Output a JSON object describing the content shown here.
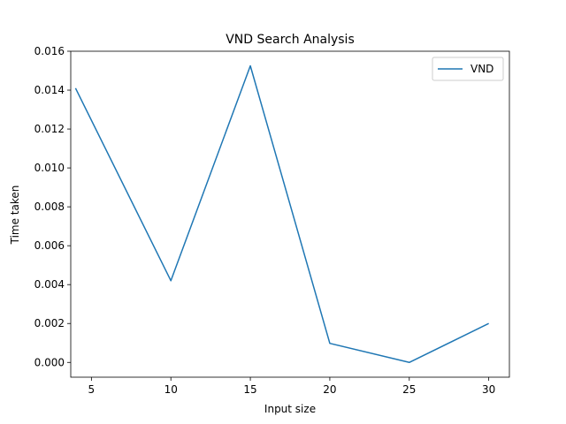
{
  "chart_data": {
    "type": "line",
    "title": "VND Search Analysis",
    "xlabel": "Input size",
    "ylabel": "Time taken",
    "xlim": [
      3.7,
      31.3
    ],
    "ylim": [
      -0.00076,
      0.016
    ],
    "xticks": [
      5,
      10,
      15,
      20,
      25,
      30
    ],
    "xtick_labels": [
      "5",
      "10",
      "15",
      "20",
      "25",
      "30"
    ],
    "yticks": [
      0.0,
      0.002,
      0.004,
      0.006,
      0.008,
      0.01,
      0.012,
      0.014,
      0.016
    ],
    "ytick_labels": [
      "0.000",
      "0.002",
      "0.004",
      "0.006",
      "0.008",
      "0.010",
      "0.012",
      "0.014",
      "0.016"
    ],
    "grid": false,
    "legend_position": "top-right",
    "series": [
      {
        "name": "VND",
        "color": "#1f77b4",
        "x": [
          4,
          10,
          15,
          20,
          25,
          30
        ],
        "y": [
          0.0141,
          0.0042,
          0.01525,
          0.00098,
          0.0,
          0.002
        ]
      }
    ]
  }
}
